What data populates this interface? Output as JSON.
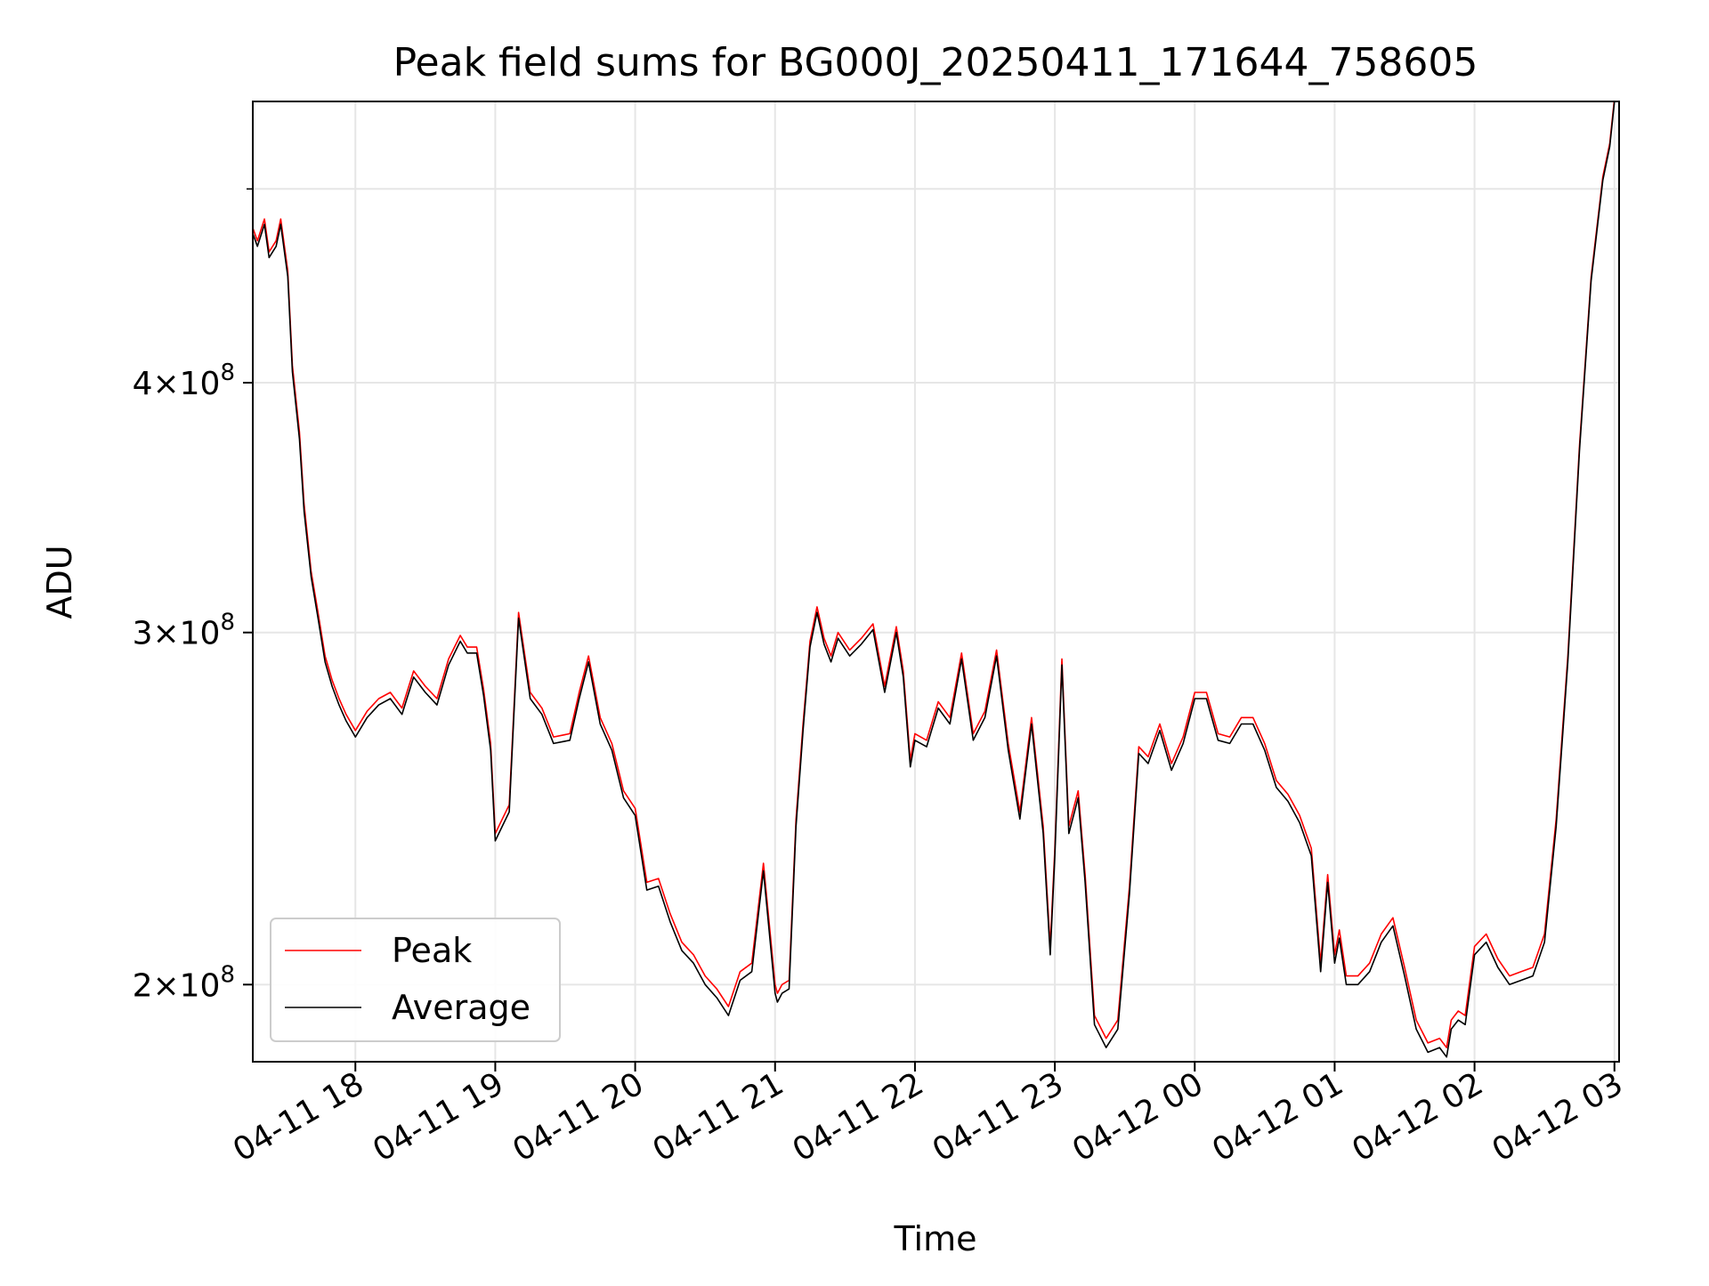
{
  "chart_data": {
    "type": "line",
    "title": "Peak field sums for BG000J_20250411_171644_758605",
    "xlabel": "Time",
    "ylabel": "ADU",
    "y_scale": "log",
    "ylim": [
      183000000,
      553000000
    ],
    "xlim": [
      "04-11 17:16",
      "04-12 03:02"
    ],
    "grid": true,
    "legend_position": "lower-left",
    "x_ticks": [
      "04-11 18:00",
      "04-11 19:00",
      "04-11 20:00",
      "04-11 21:00",
      "04-11 22:00",
      "04-11 23:00",
      "04-12 00:00",
      "04-12 01:00",
      "04-12 02:00",
      "04-12 03:00"
    ],
    "x_tick_labels": [
      "04-11 18",
      "04-11 19",
      "04-11 20",
      "04-11 21",
      "04-11 22",
      "04-11 23",
      "04-12 00",
      "04-12 01",
      "04-12 02",
      "04-12 03"
    ],
    "y_ticks": [
      {
        "value": 200000000,
        "mantissa": "2",
        "base": "10",
        "exponent": "8"
      },
      {
        "value": 300000000,
        "mantissa": "3",
        "base": "10",
        "exponent": "8"
      },
      {
        "value": 400000000,
        "mantissa": "4",
        "base": "10",
        "exponent": "8"
      }
    ],
    "y_minor_ticks": [
      500000000
    ],
    "series": [
      {
        "name": "Peak",
        "color": "#ff0000"
      },
      {
        "name": "Average",
        "color": "#000000"
      }
    ],
    "x": [
      "04-11 17:16",
      "04-11 17:18",
      "04-11 17:21",
      "04-11 17:23",
      "04-11 17:26",
      "04-11 17:28",
      "04-11 17:31",
      "04-11 17:33",
      "04-11 17:36",
      "04-11 17:38",
      "04-11 17:41",
      "04-11 17:44",
      "04-11 17:47",
      "04-11 17:50",
      "04-11 17:53",
      "04-11 17:56",
      "04-11 18:00",
      "04-11 18:05",
      "04-11 18:10",
      "04-11 18:15",
      "04-11 18:20",
      "04-11 18:25",
      "04-11 18:30",
      "04-11 18:35",
      "04-11 18:40",
      "04-11 18:45",
      "04-11 18:48",
      "04-11 18:52",
      "04-11 18:55",
      "04-11 18:58",
      "04-11 19:00",
      "04-11 19:03",
      "04-11 19:06",
      "04-11 19:10",
      "04-11 19:15",
      "04-11 19:20",
      "04-11 19:25",
      "04-11 19:32",
      "04-11 19:36",
      "04-11 19:40",
      "04-11 19:45",
      "04-11 19:50",
      "04-11 19:55",
      "04-11 20:00",
      "04-11 20:05",
      "04-11 20:10",
      "04-11 20:15",
      "04-11 20:20",
      "04-11 20:25",
      "04-11 20:30",
      "04-11 20:35",
      "04-11 20:40",
      "04-11 20:45",
      "04-11 20:50",
      "04-11 20:55",
      "04-11 21:00",
      "04-11 21:01",
      "04-11 21:03",
      "04-11 21:06",
      "04-11 21:09",
      "04-11 21:12",
      "04-11 21:15",
      "04-11 21:18",
      "04-11 21:21",
      "04-11 21:24",
      "04-11 21:27",
      "04-11 21:32",
      "04-11 21:37",
      "04-11 21:42",
      "04-11 21:47",
      "04-11 21:52",
      "04-11 21:55",
      "04-11 21:58",
      "04-11 22:00",
      "04-11 22:05",
      "04-11 22:10",
      "04-11 22:15",
      "04-11 22:20",
      "04-11 22:25",
      "04-11 22:30",
      "04-11 22:35",
      "04-11 22:40",
      "04-11 22:45",
      "04-11 22:50",
      "04-11 22:55",
      "04-11 22:58",
      "04-11 23:00",
      "04-11 23:03",
      "04-11 23:06",
      "04-11 23:10",
      "04-11 23:13",
      "04-11 23:17",
      "04-11 23:22",
      "04-11 23:27",
      "04-11 23:32",
      "04-11 23:36",
      "04-11 23:40",
      "04-11 23:45",
      "04-11 23:50",
      "04-11 23:55",
      "04-12 00:00",
      "04-12 00:05",
      "04-12 00:10",
      "04-12 00:15",
      "04-12 00:20",
      "04-12 00:25",
      "04-12 00:30",
      "04-12 00:35",
      "04-12 00:40",
      "04-12 00:45",
      "04-12 00:50",
      "04-12 00:54",
      "04-12 00:57",
      "04-12 01:00",
      "04-12 01:02",
      "04-12 01:05",
      "04-12 01:10",
      "04-12 01:15",
      "04-12 01:20",
      "04-12 01:25",
      "04-12 01:30",
      "04-12 01:35",
      "04-12 01:40",
      "04-12 01:45",
      "04-12 01:48",
      "04-12 01:50",
      "04-12 01:53",
      "04-12 01:56",
      "04-12 02:00",
      "04-12 02:05",
      "04-12 02:10",
      "04-12 02:15",
      "04-12 02:20",
      "04-12 02:25",
      "04-12 02:30",
      "04-12 02:35",
      "04-12 02:40",
      "04-12 02:45",
      "04-12 02:50",
      "04-12 02:55",
      "04-12 02:58",
      "04-12 03:00",
      "04-12 03:02"
    ],
    "average": [
      475000000,
      468000000,
      480000000,
      462000000,
      468000000,
      480000000,
      452000000,
      405000000,
      375000000,
      345000000,
      320000000,
      305000000,
      290000000,
      282000000,
      276000000,
      271000000,
      266000000,
      272000000,
      276000000,
      278000000,
      273000000,
      285000000,
      280000000,
      276000000,
      289000000,
      297000000,
      293000000,
      293000000,
      279000000,
      262000000,
      236000000,
      240000000,
      244000000,
      305000000,
      278000000,
      273000000,
      264000000,
      265000000,
      278000000,
      290000000,
      270000000,
      262000000,
      248000000,
      243000000,
      223000000,
      224000000,
      215000000,
      208000000,
      205000000,
      200000000,
      197000000,
      193000000,
      201000000,
      203000000,
      228000000,
      198000000,
      196000000,
      198000000,
      199000000,
      240000000,
      268000000,
      295000000,
      307000000,
      296000000,
      290000000,
      298000000,
      292000000,
      296000000,
      301000000,
      280000000,
      300000000,
      285000000,
      257000000,
      265000000,
      263000000,
      275000000,
      270000000,
      291000000,
      265000000,
      272000000,
      292000000,
      262000000,
      242000000,
      270000000,
      238000000,
      207000000,
      232000000,
      289000000,
      238000000,
      248000000,
      225000000,
      191000000,
      186000000,
      190000000,
      222000000,
      261000000,
      258000000,
      268000000,
      256000000,
      264000000,
      278000000,
      278000000,
      265000000,
      264000000,
      270000000,
      270000000,
      262000000,
      251000000,
      247000000,
      241000000,
      232000000,
      203000000,
      225000000,
      205000000,
      211000000,
      200000000,
      200000000,
      203000000,
      210000000,
      214000000,
      202000000,
      190000000,
      185000000,
      186000000,
      184000000,
      190000000,
      192000000,
      191000000,
      207000000,
      210000000,
      204000000,
      200000000,
      201000000,
      202000000,
      210000000,
      240000000,
      290000000,
      370000000,
      450000000,
      505000000,
      525000000,
      553000000
    ],
    "peak": [
      478000000,
      471000000,
      483000000,
      465000000,
      471000000,
      483000000,
      455000000,
      408000000,
      378000000,
      348000000,
      322000000,
      307000000,
      292000000,
      284000000,
      278000000,
      273000000,
      268000000,
      274000000,
      278000000,
      280000000,
      275000000,
      287000000,
      282000000,
      278000000,
      291000000,
      299000000,
      295000000,
      295000000,
      281000000,
      264000000,
      238000000,
      242000000,
      246000000,
      307000000,
      280000000,
      275000000,
      266000000,
      267000000,
      280000000,
      292000000,
      272000000,
      264000000,
      250000000,
      245000000,
      225000000,
      226000000,
      217000000,
      210000000,
      207000000,
      202000000,
      199000000,
      195000000,
      203000000,
      205000000,
      230000000,
      200000000,
      198000000,
      200000000,
      201000000,
      242000000,
      270000000,
      297000000,
      309000000,
      298000000,
      292000000,
      300000000,
      294000000,
      298000000,
      303000000,
      282000000,
      302000000,
      287000000,
      259000000,
      267000000,
      265000000,
      277000000,
      272000000,
      293000000,
      267000000,
      274000000,
      294000000,
      264000000,
      244000000,
      272000000,
      240000000,
      209000000,
      234000000,
      291000000,
      240000000,
      250000000,
      227000000,
      193000000,
      188000000,
      192000000,
      224000000,
      263000000,
      260000000,
      270000000,
      258000000,
      266000000,
      280000000,
      280000000,
      267000000,
      266000000,
      272000000,
      272000000,
      264000000,
      253000000,
      249000000,
      243000000,
      234000000,
      205000000,
      227000000,
      207000000,
      213000000,
      202000000,
      202000000,
      205000000,
      212000000,
      216000000,
      204000000,
      192000000,
      187000000,
      188000000,
      186000000,
      192000000,
      194000000,
      193000000,
      209000000,
      212000000,
      206000000,
      202000000,
      203000000,
      204000000,
      212000000,
      242000000,
      292000000,
      372000000,
      452000000,
      507000000,
      527000000,
      555000000
    ]
  }
}
